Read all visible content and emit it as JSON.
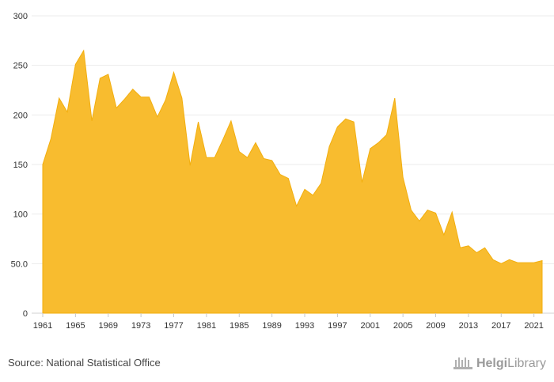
{
  "chart_data": {
    "type": "area",
    "title": "",
    "xlabel": "",
    "ylabel": "",
    "ylim": [
      0,
      300
    ],
    "yticks": [
      "0",
      "50.0",
      "100",
      "150",
      "200",
      "250",
      "300"
    ],
    "ytick_values": [
      0,
      50,
      100,
      150,
      200,
      250,
      300
    ],
    "xticks": [
      "1961",
      "1965",
      "1969",
      "1973",
      "1977",
      "1981",
      "1985",
      "1989",
      "1993",
      "1997",
      "2001",
      "2005",
      "2009",
      "2013",
      "2017",
      "2021"
    ],
    "grid": true,
    "legend": "none",
    "fill_color": "#F8BC2F",
    "line_color": "#F2AE0E",
    "x": [
      1961,
      1962,
      1963,
      1964,
      1965,
      1966,
      1967,
      1968,
      1969,
      1970,
      1971,
      1972,
      1973,
      1974,
      1975,
      1976,
      1977,
      1978,
      1979,
      1980,
      1981,
      1982,
      1983,
      1984,
      1985,
      1986,
      1987,
      1988,
      1989,
      1990,
      1991,
      1992,
      1993,
      1994,
      1995,
      1996,
      1997,
      1998,
      1999,
      2000,
      2001,
      2002,
      2003,
      2004,
      2005,
      2006,
      2007,
      2008,
      2009,
      2010,
      2011,
      2012,
      2013,
      2014,
      2015,
      2016,
      2017,
      2018,
      2019,
      2020,
      2021,
      2022
    ],
    "values": [
      150,
      176,
      217,
      203,
      251,
      265,
      194,
      237,
      241,
      207,
      216,
      226,
      218,
      218,
      198,
      215,
      243,
      217,
      149,
      193,
      157,
      157,
      175,
      194,
      163,
      157,
      172,
      156,
      154,
      140,
      136,
      108,
      125,
      119,
      131,
      168,
      188,
      196,
      193,
      132,
      166,
      172,
      180,
      217,
      137,
      104,
      93,
      104,
      101,
      79,
      102,
      66,
      68,
      61,
      66,
      54,
      50,
      54,
      51,
      51,
      51,
      53
    ]
  },
  "footer": {
    "source": "Source: National Statistical Office",
    "brand_name": "Helgi",
    "brand_suffix": "Library",
    "brand_color": "#9a9a9a"
  }
}
